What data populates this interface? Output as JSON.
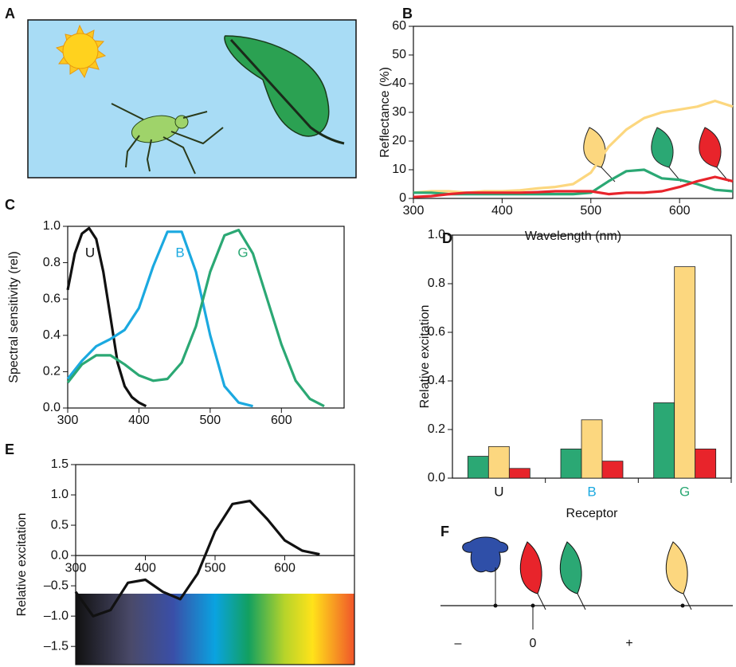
{
  "panel_a": {
    "label": "A"
  },
  "panel_f": {
    "label": "F",
    "axis_labels": [
      "–",
      "0",
      "+"
    ]
  },
  "chart_data": [
    {
      "type": "line",
      "label": "B",
      "x_label": "Wavelength (nm)",
      "y_label": "Reflectance (%)",
      "x": [
        300,
        320,
        340,
        360,
        380,
        400,
        420,
        440,
        460,
        480,
        500,
        520,
        540,
        560,
        580,
        600,
        620,
        640,
        660
      ],
      "series": [
        {
          "color": "#fcd77f",
          "values": [
            2,
            2.5,
            2.5,
            2,
            2.5,
            2.5,
            2.8,
            3.5,
            4,
            5,
            9,
            18,
            24,
            28,
            30,
            31,
            32,
            34,
            32
          ]
        },
        {
          "color": "#2ba874",
          "values": [
            2,
            2,
            1.5,
            1.5,
            1.5,
            1.5,
            1.5,
            1.5,
            1.5,
            1.5,
            2,
            6,
            9.5,
            10,
            7,
            6.5,
            5,
            3,
            2.5
          ]
        },
        {
          "color": "#e8242b",
          "values": [
            0.5,
            0.8,
            1.5,
            2,
            2,
            2,
            2,
            2.2,
            2.5,
            2.5,
            2.5,
            1.5,
            2,
            2,
            2.5,
            4,
            6,
            7.5,
            6
          ]
        }
      ],
      "xlim": [
        300,
        660
      ],
      "xticks": [
        300,
        400,
        500,
        600
      ],
      "ylim": [
        0,
        60
      ],
      "yticks": [
        0,
        10,
        20,
        30,
        40,
        50,
        60
      ]
    },
    {
      "type": "line",
      "label": "C",
      "y_label": "Spectral sensitivity (rel)",
      "series": [
        {
          "name": "U",
          "color": "#111111",
          "x": [
            300,
            310,
            320,
            330,
            340,
            350,
            360,
            370,
            380,
            390,
            400,
            410
          ],
          "values": [
            0.65,
            0.85,
            0.96,
            0.99,
            0.93,
            0.75,
            0.5,
            0.25,
            0.12,
            0.06,
            0.03,
            0.01
          ]
        },
        {
          "name": "B",
          "color": "#1ba9e0",
          "x": [
            300,
            320,
            340,
            360,
            380,
            400,
            420,
            440,
            460,
            480,
            500,
            520,
            540,
            560
          ],
          "values": [
            0.16,
            0.26,
            0.34,
            0.38,
            0.43,
            0.55,
            0.78,
            0.97,
            0.97,
            0.75,
            0.4,
            0.12,
            0.03,
            0.01
          ]
        },
        {
          "name": "G",
          "color": "#2ba874",
          "x": [
            300,
            320,
            340,
            360,
            380,
            400,
            420,
            440,
            460,
            480,
            500,
            520,
            540,
            560,
            580,
            600,
            620,
            640,
            660
          ],
          "values": [
            0.14,
            0.24,
            0.29,
            0.29,
            0.24,
            0.18,
            0.15,
            0.16,
            0.25,
            0.45,
            0.75,
            0.95,
            0.98,
            0.85,
            0.6,
            0.35,
            0.15,
            0.05,
            0.01
          ]
        }
      ],
      "xlim": [
        300,
        688
      ],
      "xticks": [
        300,
        400,
        500,
        600
      ],
      "ylim": [
        0,
        1
      ],
      "yticks": [
        {
          "value": 0,
          "label": "0.0"
        },
        0.2,
        0.4,
        0.6,
        0.8,
        {
          "value": 1,
          "label": "1.0"
        }
      ]
    },
    {
      "type": "bar",
      "label": "D",
      "x_label": "Receptor",
      "y_label": "Relative excitation",
      "categories": [
        "U",
        "B",
        "G"
      ],
      "category_colors": [
        "#111111",
        "#1ba9e0",
        "#2ba874"
      ],
      "series": [
        {
          "color": "#2ba874",
          "values": [
            0.09,
            0.12,
            0.31
          ]
        },
        {
          "color": "#fcd77f",
          "values": [
            0.13,
            0.24,
            0.87
          ]
        },
        {
          "color": "#e8242b",
          "values": [
            0.04,
            0.07,
            0.12
          ]
        }
      ],
      "ylim": [
        0,
        1
      ],
      "yticks": [
        {
          "value": 0,
          "label": "0.0"
        },
        0.2,
        0.4,
        0.6,
        0.8,
        {
          "value": 1,
          "label": "1.0"
        }
      ]
    },
    {
      "type": "line",
      "label": "E",
      "y_label": "Relative excitation",
      "x": [
        300,
        325,
        350,
        375,
        400,
        425,
        450,
        475,
        500,
        525,
        550,
        575,
        600,
        625,
        650
      ],
      "series": [
        {
          "color": "#111111",
          "values": [
            -0.6,
            -1.0,
            -0.9,
            -0.45,
            -0.4,
            -0.6,
            -0.72,
            -0.3,
            0.4,
            0.85,
            0.9,
            0.6,
            0.25,
            0.08,
            0.02
          ]
        }
      ],
      "xlim": [
        300,
        700
      ],
      "xticks": [
        300,
        400,
        500,
        600
      ],
      "ylim": [
        -1.8,
        1.5
      ],
      "yticks": [
        {
          "value": 1.5,
          "label": "1.5"
        },
        {
          "value": 1,
          "label": "1.0"
        },
        0.5,
        {
          "value": 0,
          "label": "0.0"
        },
        {
          "value": -0.5,
          "label": "–0.5"
        },
        {
          "value": -1,
          "label": "–1.0"
        },
        {
          "value": -1.5,
          "label": "–1.5"
        }
      ]
    }
  ]
}
